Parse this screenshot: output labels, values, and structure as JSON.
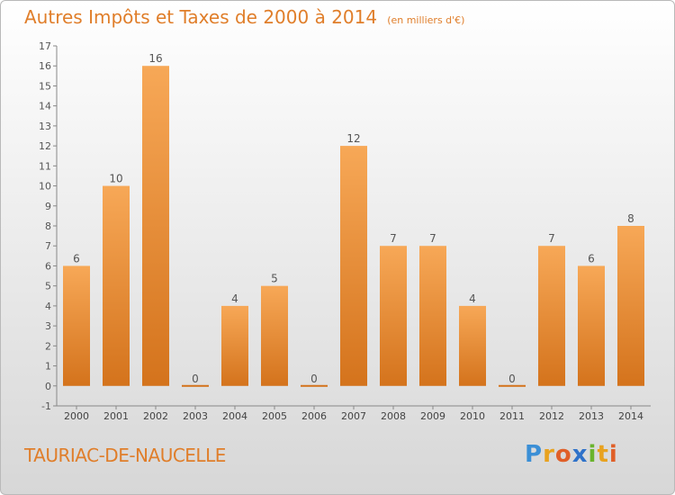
{
  "title": "Autres Impôts et Taxes de 2000 à 2014",
  "subtitle": "(en milliers d'€)",
  "commune": "TAURIAC-DE-NAUCELLE",
  "brand": {
    "letters": [
      "P",
      "r",
      "o",
      "x",
      "i",
      "t",
      "i"
    ],
    "colors": [
      "#3b8fd6",
      "#e8a21f",
      "#e05f28",
      "#2f72c9",
      "#6ab42d",
      "#e8a21f",
      "#e05f28"
    ]
  },
  "colors": {
    "accent": "#e07e2a",
    "bar_top": "#f7a857",
    "bar_bottom": "#d4731c",
    "axis": "#888888"
  },
  "chart_data": {
    "type": "bar",
    "categories": [
      "2000",
      "2001",
      "2002",
      "2003",
      "2004",
      "2005",
      "2006",
      "2007",
      "2008",
      "2009",
      "2010",
      "2011",
      "2012",
      "2013",
      "2014"
    ],
    "values": [
      6,
      10,
      16,
      0,
      4,
      5,
      0,
      12,
      7,
      7,
      4,
      0,
      7,
      6,
      8
    ],
    "data_labels": [
      "6",
      "10",
      "16",
      "0",
      "4",
      "5",
      "0",
      "12",
      "7",
      "7",
      "4",
      "0",
      "7",
      "6",
      "8"
    ],
    "yticks": [
      "-1",
      "0",
      "1",
      "2",
      "3",
      "4",
      "5",
      "6",
      "7",
      "8",
      "9",
      "10",
      "11",
      "12",
      "13",
      "14",
      "15",
      "16",
      "17"
    ],
    "ylim": [
      -1,
      17
    ],
    "grid": false,
    "legend": "none"
  }
}
